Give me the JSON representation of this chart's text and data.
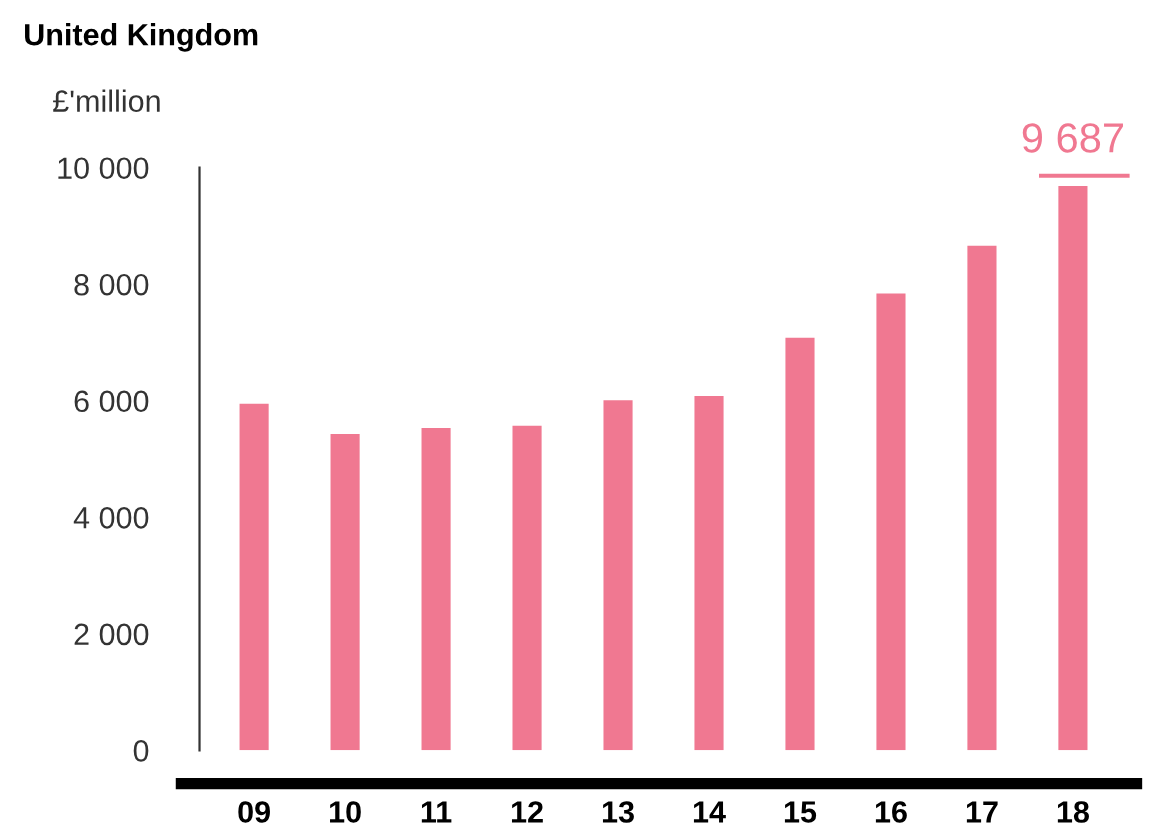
{
  "chart_data": {
    "type": "bar",
    "title": "United Kingdom",
    "ylabel": "£'million",
    "categories": [
      "09",
      "10",
      "11",
      "12",
      "13",
      "14",
      "15",
      "16",
      "17",
      "18"
    ],
    "values": [
      5950,
      5430,
      5530,
      5570,
      6010,
      6080,
      7080,
      7840,
      8660,
      9687
    ],
    "color": "#f07891",
    "value_labels": [
      null,
      null,
      null,
      null,
      null,
      null,
      null,
      null,
      null,
      "9 687"
    ],
    "ylim": [
      0,
      10000
    ],
    "yticks": [
      0,
      {
        "value": 2000,
        "label": "2 000"
      },
      {
        "value": 4000,
        "label": "4 000"
      },
      {
        "value": 6000,
        "label": "6 000"
      },
      {
        "value": 8000,
        "label": "8 000"
      },
      {
        "value": 10000,
        "label": "10 000"
      }
    ],
    "grid": false
  }
}
